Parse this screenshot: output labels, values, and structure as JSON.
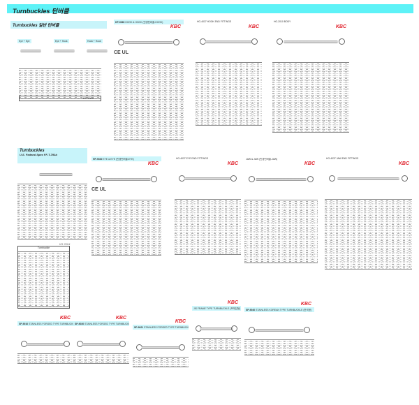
{
  "banner": {
    "title": "Turnbuckles  턴버클"
  },
  "general": {
    "title": "Turnbuckles 일반 턴버클",
    "types": [
      "Eye + Eye",
      "Eye + Hook",
      "Hook + Hook"
    ],
    "spec": "KS 2004"
  },
  "federal": {
    "title": "Turnbuckles",
    "subtitle": "U.S. Federal Spec FF-T-791b",
    "spec": "KS 2004",
    "table_title": "Turnbuckle"
  },
  "brand": "KBC",
  "cert": "CE UL",
  "products": [
    {
      "code": "HP-9060",
      "title": "HOOK & HOOK (민경턴버클-HOOK)"
    },
    {
      "code": "",
      "title": "HG-4037 HOOK END FITTINGS"
    },
    {
      "code": "",
      "title": "HG-2010 BODY"
    },
    {
      "code": "HP-9040",
      "title": "EYE & EYE (민경턴버클-EYE)"
    },
    {
      "code": "",
      "title": "HG-4037 EYE END FITTINGS"
    },
    {
      "code": "",
      "title": "JAW & JAW (민경턴버클-JAW)"
    },
    {
      "code": "",
      "title": "HG-4037 JAW END FITTINGS"
    },
    {
      "code": "SP-9010",
      "title": "STAINLESS FORGED TYPE TURNBUCKLE (H-H형)"
    },
    {
      "code": "SP-9030",
      "title": "STAINLESS FORGED TYPE TURNBUCKLE (E-E형)"
    },
    {
      "code": "SP-9021",
      "title": "STAINLESS FORGED TYPE TURNBUCKLE (J-J형)"
    },
    {
      "code": "",
      "title": "JIS FRAME TYPE TURNBUCKLE (프레임형)"
    },
    {
      "code": "SP-9040",
      "title": "STAINLESS KOREAN TYPE TURNBUCKLE (한국형)"
    }
  ]
}
